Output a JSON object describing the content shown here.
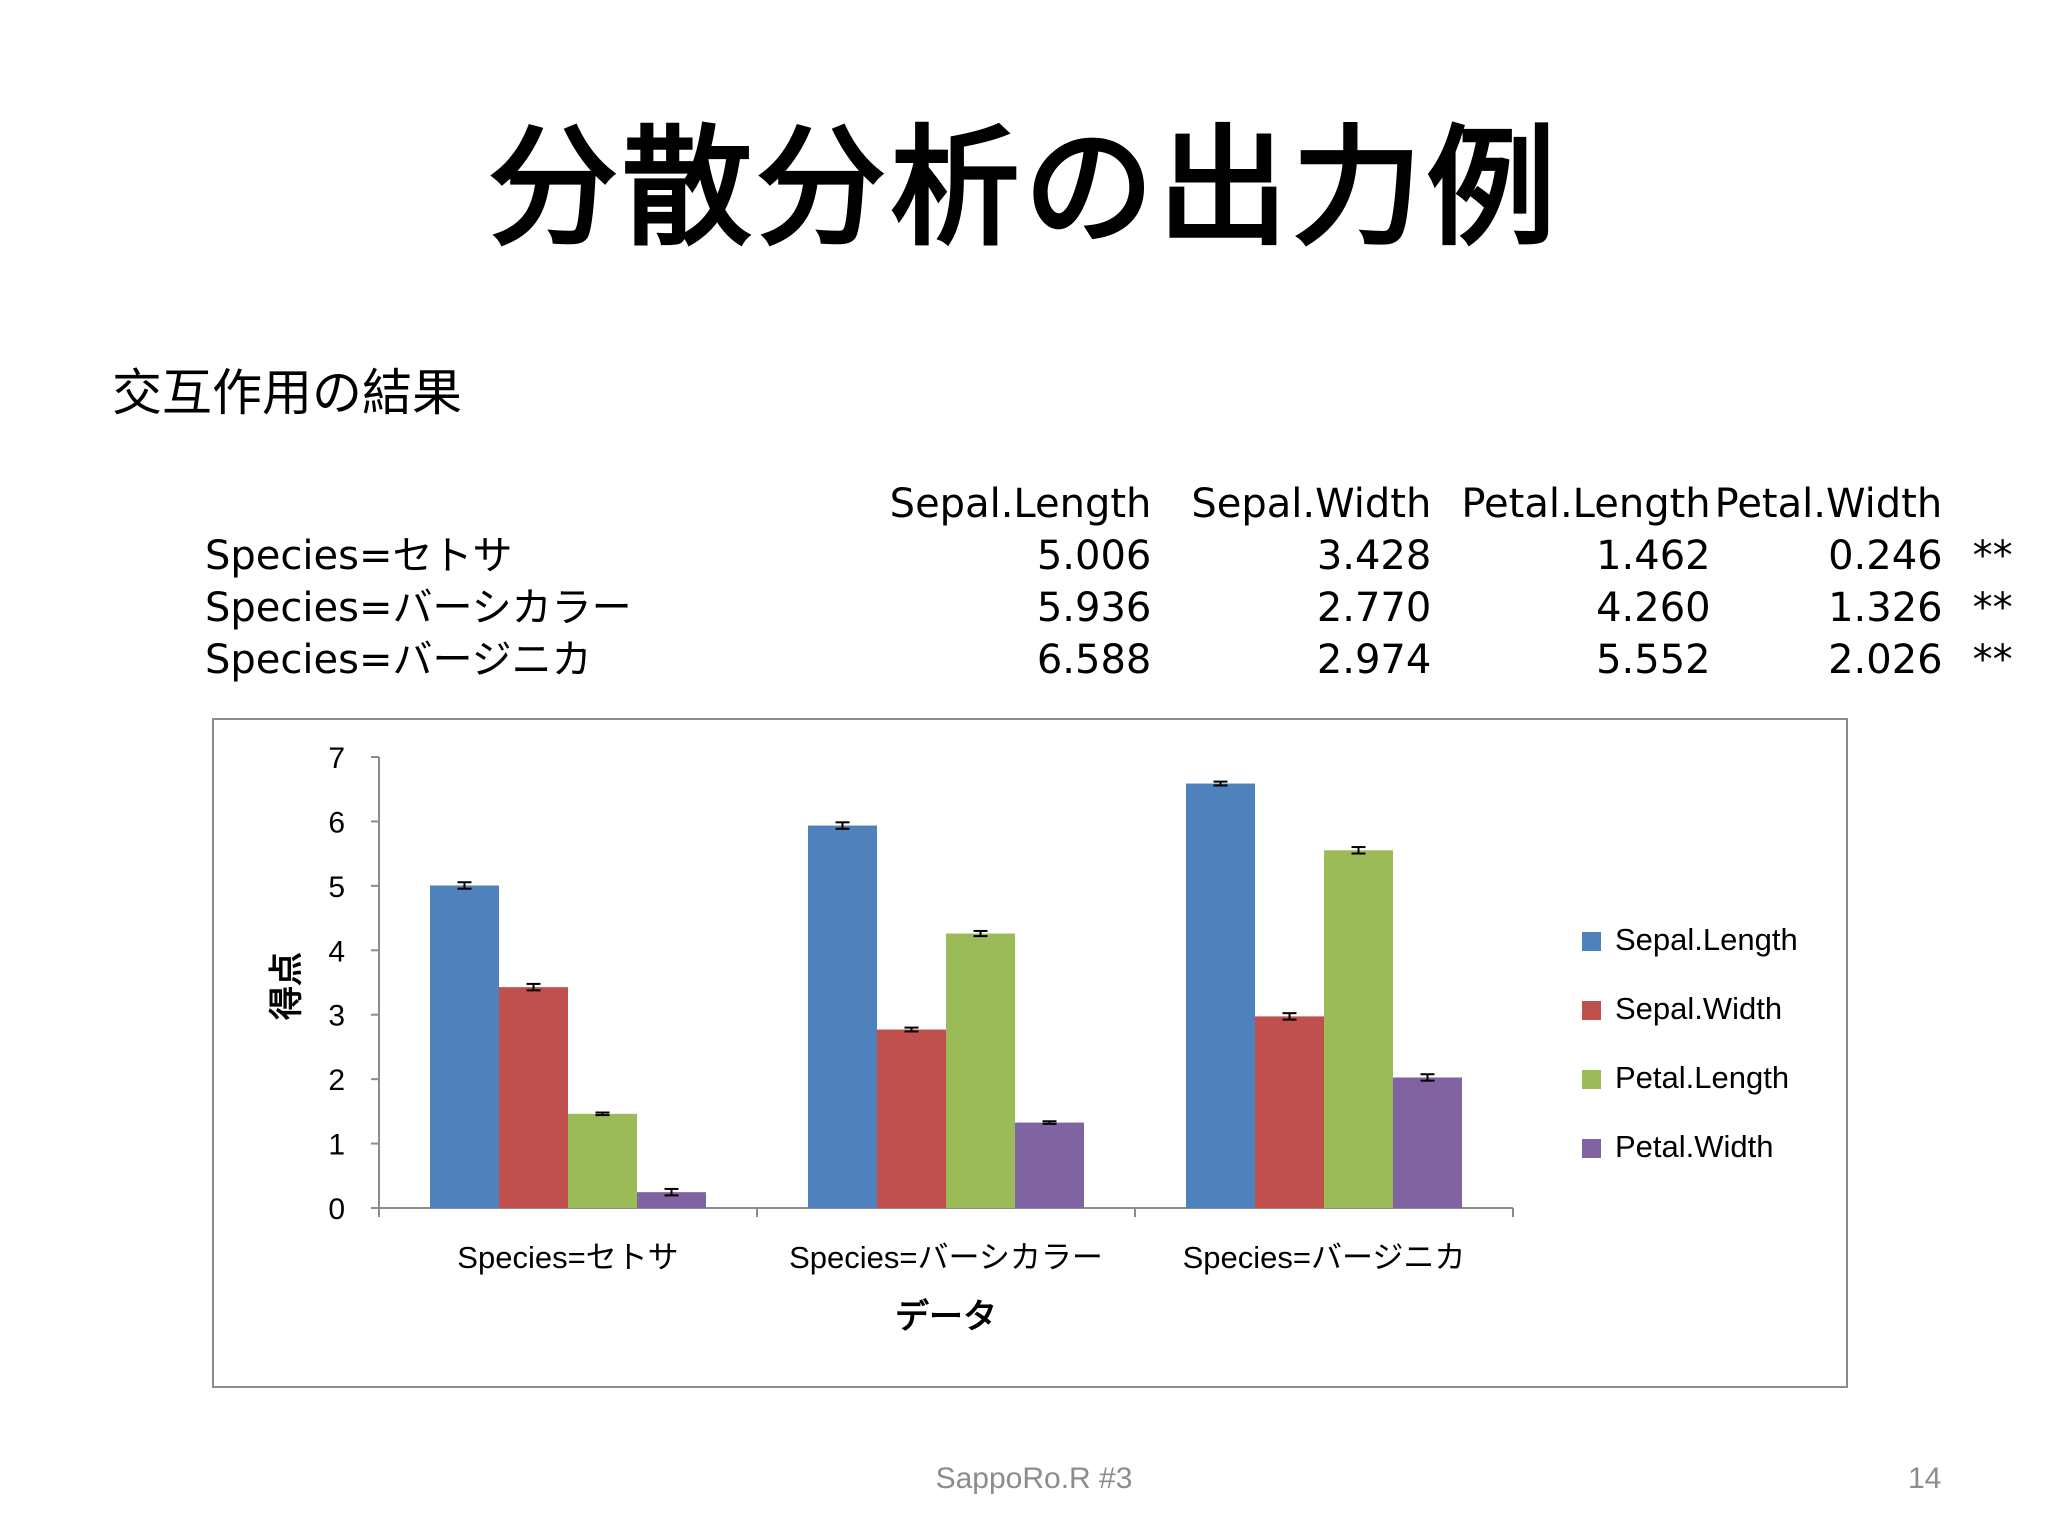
{
  "slide": {
    "title": "分散分析の出力例",
    "subtitle": "交互作用の結果",
    "footer": "SappoRo.R #3",
    "page_number": "14"
  },
  "table": {
    "columns": [
      "Sepal.Length",
      "Sepal.Width",
      "Petal.Length",
      "Petal.Width"
    ],
    "rows": [
      {
        "label": "Species=セトサ",
        "values": [
          "5.006",
          "3.428",
          "1.462",
          "0.246"
        ],
        "significance": "**"
      },
      {
        "label": "Species=バーシカラー",
        "values": [
          "5.936",
          "2.770",
          "4.260",
          "1.326"
        ],
        "significance": "**"
      },
      {
        "label": "Species=バージニカ",
        "values": [
          "6.588",
          "2.974",
          "5.552",
          "2.026"
        ],
        "significance": "**"
      }
    ]
  },
  "chart_data": {
    "type": "bar",
    "title": "",
    "xlabel": "データ",
    "ylabel": "得点",
    "ylim": [
      0,
      7
    ],
    "yticks": [
      0,
      1,
      2,
      3,
      4,
      5,
      6,
      7
    ],
    "categories": [
      "Species=セトサ",
      "Species=バーシカラー",
      "Species=バージニカ"
    ],
    "series": [
      {
        "name": "Sepal.Length",
        "color": "#4f81bd",
        "values": [
          5.006,
          5.936,
          6.588
        ],
        "errors": [
          0.05,
          0.05,
          0.03
        ]
      },
      {
        "name": "Sepal.Width",
        "color": "#c0504d",
        "values": [
          3.428,
          2.77,
          2.974
        ],
        "errors": [
          0.05,
          0.03,
          0.05
        ]
      },
      {
        "name": "Petal.Length",
        "color": "#9bbb59",
        "values": [
          1.462,
          4.26,
          5.552
        ],
        "errors": [
          0.02,
          0.04,
          0.05
        ]
      },
      {
        "name": "Petal.Width",
        "color": "#8064a2",
        "values": [
          0.246,
          1.326,
          2.026
        ],
        "errors": [
          0.05,
          0.02,
          0.05
        ]
      }
    ],
    "error_bars": true,
    "legend_position": "right",
    "grid": false
  }
}
